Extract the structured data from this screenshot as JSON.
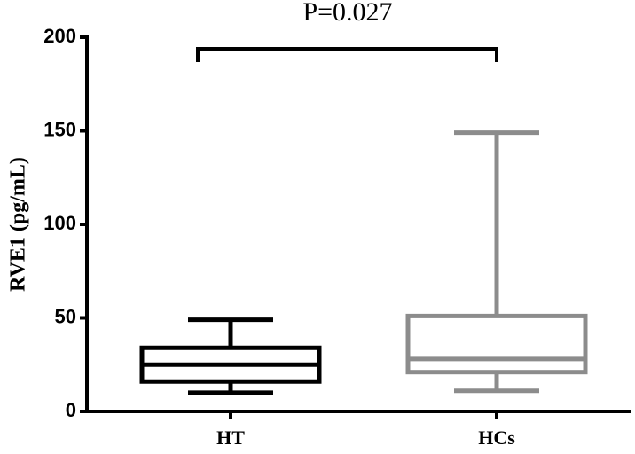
{
  "chart_data": {
    "type": "box",
    "annotation": "P=0.027",
    "ylabel": "RVE1 (pg/mL)",
    "categories": [
      "HT",
      "HCs"
    ],
    "boxes": [
      {
        "min": 10,
        "q1": 16,
        "median": 25,
        "q3": 34,
        "max": 49,
        "color": "#000000"
      },
      {
        "min": 11,
        "q1": 21,
        "median": 28,
        "q3": 51,
        "max": 149,
        "color": "#8c8c8c"
      }
    ],
    "ylim": [
      0,
      200
    ],
    "yticks": [
      0,
      50,
      100,
      150,
      200
    ]
  }
}
